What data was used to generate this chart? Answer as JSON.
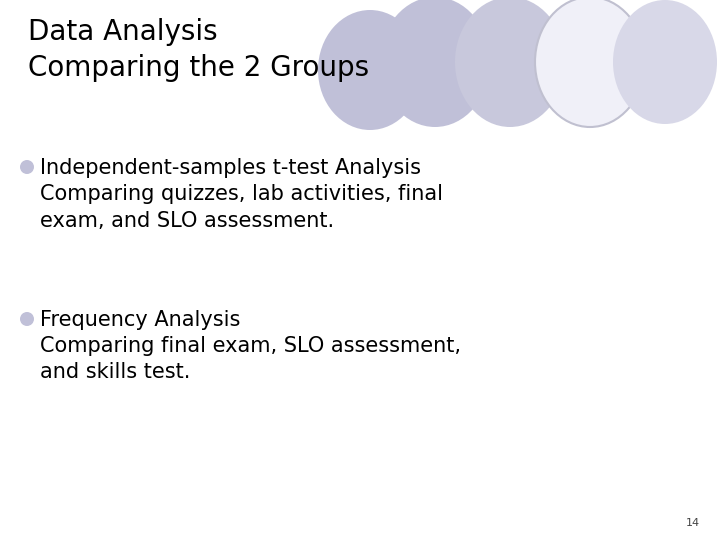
{
  "title_line1": "Data Analysis",
  "title_line2": "Comparing the 2 Groups",
  "bullet1_header": "Independent-samples t-test Analysis",
  "bullet1_line2": "Comparing quizzes, lab activities, final",
  "bullet1_line3": "exam, and SLO assessment.",
  "bullet2_header": "Frequency Analysis",
  "bullet2_line2": "Comparing final exam, SLO assessment,",
  "bullet2_line3": "and skills test.",
  "page_number": "14",
  "bg_color": "#ffffff",
  "title_color": "#000000",
  "bullet_color": "#000000",
  "bullet_dot_color": "#c0c0d8",
  "title_fontsize": 20,
  "bullet_header_fontsize": 15,
  "bullet_body_fontsize": 15,
  "page_num_fontsize": 8
}
